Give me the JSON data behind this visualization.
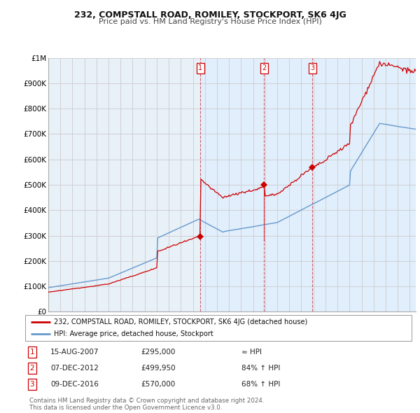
{
  "title": "232, COMPSTALL ROAD, ROMILEY, STOCKPORT, SK6 4JG",
  "subtitle": "Price paid vs. HM Land Registry's House Price Index (HPI)",
  "ylim": [
    0,
    1000000
  ],
  "yticks": [
    0,
    100000,
    200000,
    300000,
    400000,
    500000,
    600000,
    700000,
    800000,
    900000,
    1000000
  ],
  "ytick_labels": [
    "£0",
    "£100K",
    "£200K",
    "£300K",
    "£400K",
    "£500K",
    "£600K",
    "£700K",
    "£800K",
    "£900K",
    "£1M"
  ],
  "sales": [
    {
      "label": "1",
      "date": "15-AUG-2007",
      "price": 295000,
      "year": 2007.62,
      "hpi_rel": "≈ HPI"
    },
    {
      "label": "2",
      "date": "07-DEC-2012",
      "price": 499950,
      "year": 2012.92,
      "hpi_rel": "84% ↑ HPI"
    },
    {
      "label": "3",
      "date": "09-DEC-2016",
      "price": 570000,
      "year": 2016.92,
      "hpi_rel": "68% ↑ HPI"
    }
  ],
  "legend_red": "232, COMPSTALL ROAD, ROMILEY, STOCKPORT, SK6 4JG (detached house)",
  "legend_blue": "HPI: Average price, detached house, Stockport",
  "footnote": "Contains HM Land Registry data © Crown copyright and database right 2024.\nThis data is licensed under the Open Government Licence v3.0.",
  "red_color": "#cc0000",
  "blue_color": "#6699cc",
  "bg_color": "#ffffff",
  "plot_bg": "#e8f0f8",
  "grid_color": "#cccccc",
  "shade_color": "#ddeeff"
}
